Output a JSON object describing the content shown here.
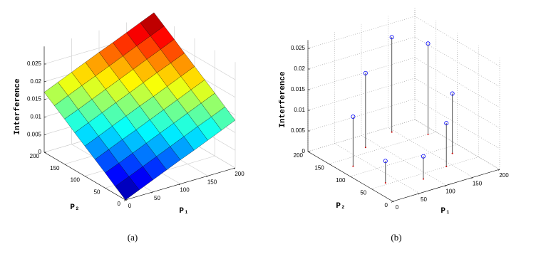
{
  "chart_data": [
    {
      "type": "surface",
      "caption": "(a)",
      "colormap": "jet",
      "grid": true,
      "xlabel": "P₁",
      "ylabel": "P₂",
      "zlabel": "Interference",
      "x": [
        0,
        25,
        50,
        75,
        100,
        125,
        150,
        175,
        200
      ],
      "y": [
        0,
        25,
        50,
        75,
        100,
        125,
        150,
        175,
        200
      ],
      "z": [
        [
          0,
          0.0017,
          0.0034,
          0.0051,
          0.0068,
          0.0084,
          0.0101,
          0.0118,
          0.0135
        ],
        [
          0.0021,
          0.0038,
          0.0055,
          0.0072,
          0.0089,
          0.0106,
          0.0123,
          0.0139,
          0.0156
        ],
        [
          0.0043,
          0.0059,
          0.0076,
          0.0093,
          0.011,
          0.0127,
          0.0144,
          0.0161,
          0.0178
        ],
        [
          0.0064,
          0.0081,
          0.0098,
          0.0114,
          0.0131,
          0.0148,
          0.0165,
          0.0182,
          0.0199
        ],
        [
          0.0085,
          0.0102,
          0.0119,
          0.0136,
          0.0153,
          0.0169,
          0.0186,
          0.0203,
          0.022
        ],
        [
          0.0106,
          0.0123,
          0.014,
          0.0157,
          0.0174,
          0.0191,
          0.0208,
          0.0224,
          0.0241
        ],
        [
          0.0128,
          0.0144,
          0.0161,
          0.0178,
          0.0195,
          0.0212,
          0.0229,
          0.0246,
          0.0263
        ],
        [
          0.0149,
          0.0166,
          0.0183,
          0.0199,
          0.0216,
          0.0233,
          0.025,
          0.0267,
          0.0284
        ],
        [
          0.017,
          0.0187,
          0.0204,
          0.0221,
          0.0238,
          0.0254,
          0.0271,
          0.0288,
          0.0305
        ]
      ],
      "xlim": [
        0,
        200
      ],
      "ylim": [
        0,
        200
      ],
      "zlim": [
        0,
        0.03
      ],
      "xticks": [
        0,
        50,
        100,
        150,
        200
      ],
      "yticks": [
        0,
        50,
        100,
        150,
        200
      ],
      "zticks": [
        0,
        0.005,
        0.01,
        0.015,
        0.02,
        0.025
      ]
    },
    {
      "type": "stem3",
      "caption": "(b)",
      "grid": true,
      "xlabel": "P₁",
      "ylabel": "P₂",
      "zlabel": "Interference",
      "color": "#0000ff",
      "stem_color": "#555555",
      "base_color": "#cc0000",
      "x": [
        25,
        80,
        145,
        185,
        175,
        140,
        30,
        85
      ],
      "y": [
        125,
        165,
        185,
        150,
        80,
        50,
        55,
        35
      ],
      "z": [
        0.012,
        0.018,
        0.023,
        0.022,
        0.0145,
        0.0105,
        0.0053,
        0.0055
      ],
      "xlim": [
        0,
        200
      ],
      "ylim": [
        0,
        200
      ],
      "zlim": [
        0,
        0.027
      ],
      "xticks": [
        0,
        50,
        100,
        150,
        200
      ],
      "yticks": [
        0,
        50,
        100,
        150,
        200
      ],
      "zticks": [
        0,
        0.005,
        0.01,
        0.015,
        0.02,
        0.025
      ]
    }
  ]
}
